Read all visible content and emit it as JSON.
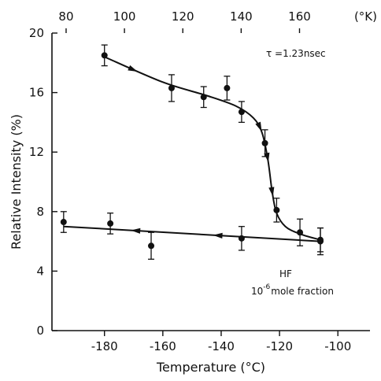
{
  "chart_data": {
    "type": "scatter",
    "xlabel": "Temperature (°C)",
    "ylabel": "Relative Intensity (%)",
    "top_axis_unit": "(°K)",
    "xlim": [
      -198,
      -89
    ],
    "ylim": [
      0,
      20
    ],
    "x_ticks": [
      "-180",
      "-160",
      "-140",
      "-120",
      "-100"
    ],
    "y_ticks": [
      "0",
      "4",
      "8",
      "12",
      "16",
      "20"
    ],
    "top_ticks": [
      "80",
      "100",
      "120",
      "140",
      "160"
    ],
    "grid": false,
    "series": [
      {
        "points": [
          {
            "x": -180,
            "y": 18.5,
            "err": 0.7
          },
          {
            "x": -157,
            "y": 16.3,
            "err": 0.9
          },
          {
            "x": -146,
            "y": 15.7,
            "err": 0.7
          },
          {
            "x": -138,
            "y": 16.3,
            "err": 0.8
          },
          {
            "x": -133,
            "y": 14.7,
            "err": 0.7
          },
          {
            "x": -125,
            "y": 12.6,
            "err": 0.9
          },
          {
            "x": -121,
            "y": 8.1,
            "err": 0.8
          },
          {
            "x": -113,
            "y": 6.6,
            "err": 0.9
          },
          {
            "x": -106,
            "y": 6.0,
            "err": 0.9
          }
        ],
        "fit": [
          [
            -180,
            18.4
          ],
          [
            -160,
            16.7
          ],
          [
            -145,
            15.8
          ],
          [
            -135,
            15.1
          ],
          [
            -129,
            14.3
          ],
          [
            -126,
            13.3
          ],
          [
            -124,
            11.5
          ],
          [
            -122.5,
            9.3
          ],
          [
            -121,
            7.9
          ],
          [
            -118,
            7.0
          ],
          [
            -113,
            6.5
          ],
          [
            -106,
            6.1
          ]
        ]
      },
      {
        "points": [
          {
            "x": -194,
            "y": 7.3,
            "err": 0.7
          },
          {
            "x": -178,
            "y": 7.2,
            "err": 0.7
          },
          {
            "x": -164,
            "y": 5.7,
            "err": 0.9
          },
          {
            "x": -133,
            "y": 6.2,
            "err": 0.8
          },
          {
            "x": -106,
            "y": 6.1,
            "err": 0.8
          }
        ],
        "fit": [
          [
            -194,
            7.0
          ],
          [
            -106,
            6.0
          ]
        ]
      }
    ],
    "annotations": {
      "tau_label": "τ =1.23nsec",
      "hf_label": "HF",
      "fraction_base": "10",
      "fraction_exp": "-6",
      "fraction_text": "mole fraction"
    }
  }
}
